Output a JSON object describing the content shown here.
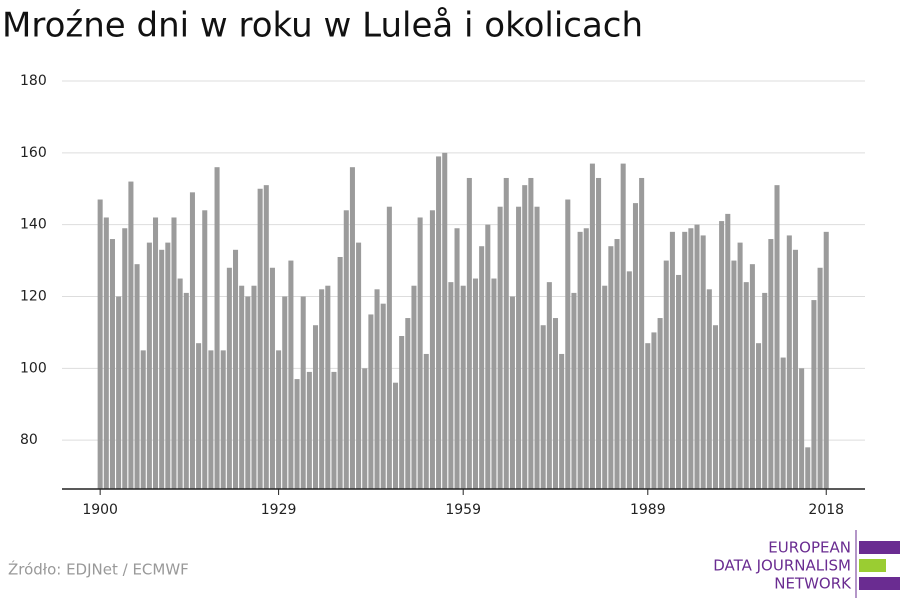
{
  "chart_data": {
    "type": "bar",
    "title": "Mroźne dni w roku w Luleå i okolicach",
    "x": [
      1900,
      1901,
      1902,
      1903,
      1904,
      1905,
      1906,
      1907,
      1908,
      1909,
      1910,
      1911,
      1912,
      1913,
      1914,
      1915,
      1916,
      1917,
      1918,
      1919,
      1920,
      1921,
      1922,
      1923,
      1924,
      1925,
      1926,
      1927,
      1928,
      1929,
      1930,
      1931,
      1932,
      1933,
      1934,
      1935,
      1936,
      1937,
      1938,
      1939,
      1940,
      1941,
      1942,
      1943,
      1944,
      1945,
      1946,
      1947,
      1948,
      1949,
      1950,
      1951,
      1952,
      1953,
      1954,
      1955,
      1956,
      1957,
      1958,
      1959,
      1960,
      1961,
      1962,
      1963,
      1964,
      1965,
      1966,
      1967,
      1968,
      1969,
      1970,
      1971,
      1972,
      1973,
      1974,
      1975,
      1976,
      1977,
      1978,
      1979,
      1980,
      1981,
      1982,
      1983,
      1984,
      1985,
      1986,
      1987,
      1988,
      1989,
      1990,
      1991,
      1992,
      1993,
      1994,
      1995,
      1996,
      1997,
      1998,
      1999,
      2000,
      2001,
      2002,
      2003,
      2004,
      2005,
      2006,
      2007,
      2008,
      2009,
      2010,
      2011,
      2012,
      2013,
      2014,
      2015,
      2016,
      2017,
      2018
    ],
    "values": [
      147,
      142,
      136,
      120,
      139,
      152,
      129,
      105,
      135,
      142,
      133,
      135,
      142,
      125,
      121,
      149,
      107,
      144,
      105,
      156,
      105,
      128,
      133,
      123,
      120,
      123,
      150,
      151,
      128,
      105,
      120,
      130,
      97,
      120,
      99,
      112,
      122,
      123,
      99,
      131,
      144,
      156,
      135,
      100,
      115,
      122,
      118,
      145,
      96,
      109,
      114,
      123,
      142,
      104,
      144,
      159,
      160,
      124,
      139,
      123,
      153,
      125,
      134,
      140,
      125,
      145,
      153,
      120,
      145,
      151,
      153,
      145,
      112,
      124,
      114,
      104,
      147,
      121,
      138,
      139,
      157,
      153,
      123,
      134,
      136,
      157,
      127,
      146,
      153,
      107,
      110,
      114,
      130,
      138,
      126,
      138,
      139,
      140,
      137,
      122,
      112,
      141,
      143,
      130,
      135,
      124,
      129,
      107,
      121,
      136,
      151,
      103,
      137,
      133,
      100,
      78,
      119,
      128,
      138
    ],
    "color": "#9b9b9b",
    "xlim": [
      1893.8,
      2024.3
    ],
    "xticks": [
      1900,
      1929,
      1959,
      1989,
      2018
    ],
    "ylim": [
      66.4,
      180
    ],
    "yticks": [
      80,
      100,
      120,
      140,
      160,
      180
    ],
    "grid": true
  },
  "source": "Źródło: EDJNet / ECMWF",
  "logo": {
    "lines": [
      "EUROPEAN",
      "DATA JOURNALISM",
      "NETWORK"
    ]
  }
}
